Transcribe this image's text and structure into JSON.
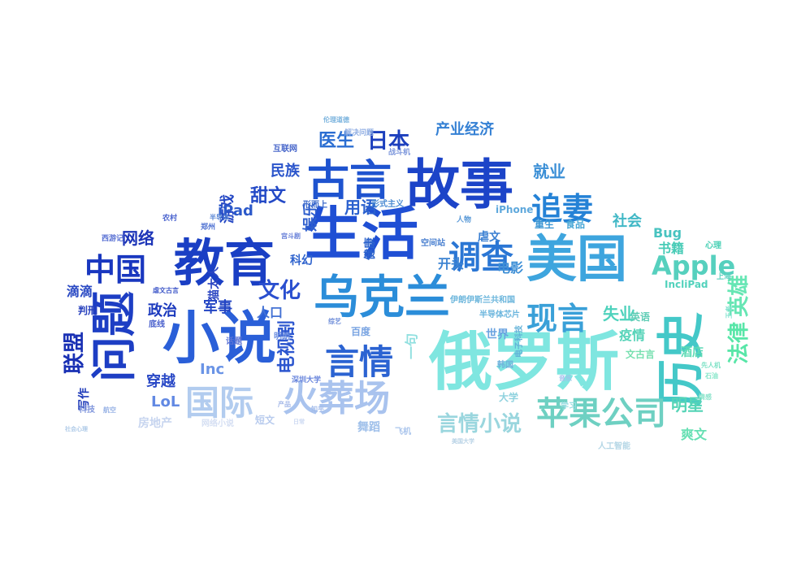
{
  "words": [
    {
      "text": "俄罗斯",
      "color": "#7fe6e0"
    },
    {
      "text": "小说",
      "color": "#2a5fd8"
    },
    {
      "text": "生活",
      "color": "#1f4fd4"
    },
    {
      "text": "故事",
      "color": "#1c44c8"
    },
    {
      "text": "美国",
      "color": "#3ea5de"
    },
    {
      "text": "教育",
      "color": "#1a3fc4"
    },
    {
      "text": "乌克兰",
      "color": "#2b8dd9"
    },
    {
      "text": "古言",
      "color": "#1e53cf"
    },
    {
      "text": "问题",
      "color": "#1d3ec4"
    },
    {
      "text": "历史",
      "color": "#44c8c8"
    },
    {
      "text": "火葬场",
      "color": "#a9c3ee"
    },
    {
      "text": "苹果公司",
      "color": "#6ed0c2"
    },
    {
      "text": "调查",
      "color": "#2a76d4"
    },
    {
      "text": "国际",
      "color": "#b2ccef"
    },
    {
      "text": "言情",
      "color": "#2b63d2"
    },
    {
      "text": "现言",
      "color": "#3aa0d8"
    },
    {
      "text": "追妻",
      "color": "#2582d6"
    },
    {
      "text": "中国",
      "color": "#1937bf"
    },
    {
      "text": "Apple",
      "color": "#56d0be"
    },
    {
      "text": "言情小说",
      "color": "#9ad6de"
    },
    {
      "text": "法律",
      "color": "#58e6a8"
    },
    {
      "text": "英雄",
      "color": "#66e6b4"
    },
    {
      "text": "文化",
      "color": "#2a4fcf"
    },
    {
      "text": "日本",
      "color": "#1c3fbd"
    },
    {
      "text": "联盟",
      "color": "#1930b4"
    },
    {
      "text": "电视剧",
      "color": "#2c56cf"
    },
    {
      "text": "医生",
      "color": "#2b6ed2"
    },
    {
      "text": "产业经济",
      "color": "#3480d4"
    },
    {
      "text": "明星",
      "color": "#55d4b6"
    },
    {
      "text": "甜文",
      "color": "#2349c6"
    },
    {
      "text": "用语",
      "color": "#2a60ce"
    },
    {
      "text": "就业",
      "color": "#3b8fd6"
    },
    {
      "text": "失业",
      "color": "#4ed2bc"
    },
    {
      "text": "游戏",
      "color": "#2346c4"
    },
    {
      "text": "网络",
      "color": "#1d35b8"
    },
    {
      "text": "政治",
      "color": "#1b39bd"
    },
    {
      "text": "军事",
      "color": "#2244c3"
    },
    {
      "text": "民族",
      "color": "#2b55cb"
    },
    {
      "text": "iPad",
      "color": "#2c59ca"
    },
    {
      "text": "Inc",
      "color": "#6a94e6"
    },
    {
      "text": "LoL",
      "color": "#6289e3"
    },
    {
      "text": "写作",
      "color": "#1e3ab9"
    },
    {
      "text": "穿越",
      "color": "#2a49c6"
    },
    {
      "text": "滴滴",
      "color": "#2848c3"
    },
    {
      "text": "娱乐",
      "color": "#2f5fcd"
    },
    {
      "text": "舞蹈",
      "color": "#9fc0ea"
    },
    {
      "text": "书籍",
      "color": "#47cbb6"
    },
    {
      "text": "社会",
      "color": "#41b8c6"
    },
    {
      "text": "Bug",
      "color": "#48c3c0"
    },
    {
      "text": "疫情",
      "color": "#55d3b8"
    },
    {
      "text": "酒店",
      "color": "#5cdab4"
    },
    {
      "text": "爽文",
      "color": "#67e0b4"
    },
    {
      "text": "一句",
      "color": "#92e0e0"
    },
    {
      "text": "电影",
      "color": "#3e8fd6"
    },
    {
      "text": "开头",
      "color": "#3d84d2"
    },
    {
      "text": "世界",
      "color": "#6aa3e0"
    },
    {
      "text": "百度",
      "color": "#79a4e2"
    },
    {
      "text": "人口",
      "color": "#4472d4"
    },
    {
      "text": "虐文",
      "color": "#3a7fd2"
    },
    {
      "text": "重生",
      "color": "#3c96d4"
    },
    {
      "text": "食品",
      "color": "#4aa7d6"
    },
    {
      "text": "健康",
      "color": "#2c63cc"
    },
    {
      "text": "科幻",
      "color": "#2f63cd"
    },
    {
      "text": "房地产",
      "color": "#c6d4ef"
    },
    {
      "text": "短文",
      "color": "#b8cbee"
    },
    {
      "text": "大学",
      "color": "#8fd2de"
    },
    {
      "text": "学习",
      "color": "#97dce0"
    },
    {
      "text": "韩国",
      "color": "#6eb2dc"
    },
    {
      "text": "英语",
      "color": "#60cdb6"
    },
    {
      "text": "文古言",
      "color": "#78e0b0"
    },
    {
      "text": "心理",
      "color": "#4bd1b6"
    },
    {
      "text": "IncliPad",
      "color": "#52d2bc"
    },
    {
      "text": "判刑",
      "color": "#2740bd"
    },
    {
      "text": "话题",
      "color": "#5b73d5"
    },
    {
      "text": "科技",
      "color": "#8096dc"
    },
    {
      "text": "iPhone",
      "color": "#5ea8dc"
    },
    {
      "text": "明朗",
      "color": "#6a8de0"
    },
    {
      "text": "猫太人",
      "color": "#2b45c2"
    },
    {
      "text": "深圳大学",
      "color": "#6784dc"
    },
    {
      "text": "半导体芯片",
      "color": "#6ab5dd"
    },
    {
      "text": "伊朗伊斯兰共和国",
      "color": "#6cb6dc"
    },
    {
      "text": "电子科技",
      "color": "#62b2d8"
    },
    {
      "text": "空间站",
      "color": "#4a80d0"
    },
    {
      "text": "形而上",
      "color": "#3f6ccc"
    },
    {
      "text": "形式主义",
      "color": "#4b8bd2"
    },
    {
      "text": "互联网",
      "color": "#4766ca"
    },
    {
      "text": "西游记",
      "color": "#5a72d4"
    },
    {
      "text": "解决问题",
      "color": "#90aee3"
    },
    {
      "text": "战斗机",
      "color": "#7d97dc"
    },
    {
      "text": "伦理道德",
      "color": "#7cb4de"
    },
    {
      "text": "底线",
      "color": "#4c62cd"
    },
    {
      "text": "虐文古言",
      "color": "#3d56c8"
    },
    {
      "text": "人工智能",
      "color": "#b5d7e6"
    },
    {
      "text": "网络小说",
      "color": "#d5dff3"
    },
    {
      "text": "飞机",
      "color": "#a9c4ec"
    },
    {
      "text": "航空",
      "color": "#9ab4e6"
    },
    {
      "text": "知乎",
      "color": "#a2bbea"
    },
    {
      "text": "产品",
      "color": "#a4b8e8"
    },
    {
      "text": "音乐",
      "color": "#a3bfeb"
    },
    {
      "text": "社会心理",
      "color": "#b0cbe8"
    },
    {
      "text": "日常",
      "color": "#ccd9f2"
    },
    {
      "text": "美国大学",
      "color": "#b9d3e6"
    },
    {
      "text": "农村",
      "color": "#4b64cf"
    },
    {
      "text": "郑州",
      "color": "#4f72d2"
    },
    {
      "text": "半导体",
      "color": "#5482d3"
    },
    {
      "text": "宫斗剧",
      "color": "#6880d8"
    },
    {
      "text": "综艺",
      "color": "#6f8ed9"
    },
    {
      "text": "人物",
      "color": "#5b9ad8"
    },
    {
      "text": "上海",
      "color": "#5fd1c0"
    },
    {
      "text": "王者",
      "color": "#86e3d0"
    },
    {
      "text": "先人机",
      "color": "#7de2c6"
    },
    {
      "text": "石油",
      "color": "#84e6c8"
    },
    {
      "text": "情感",
      "color": "#8de4cc"
    }
  ]
}
